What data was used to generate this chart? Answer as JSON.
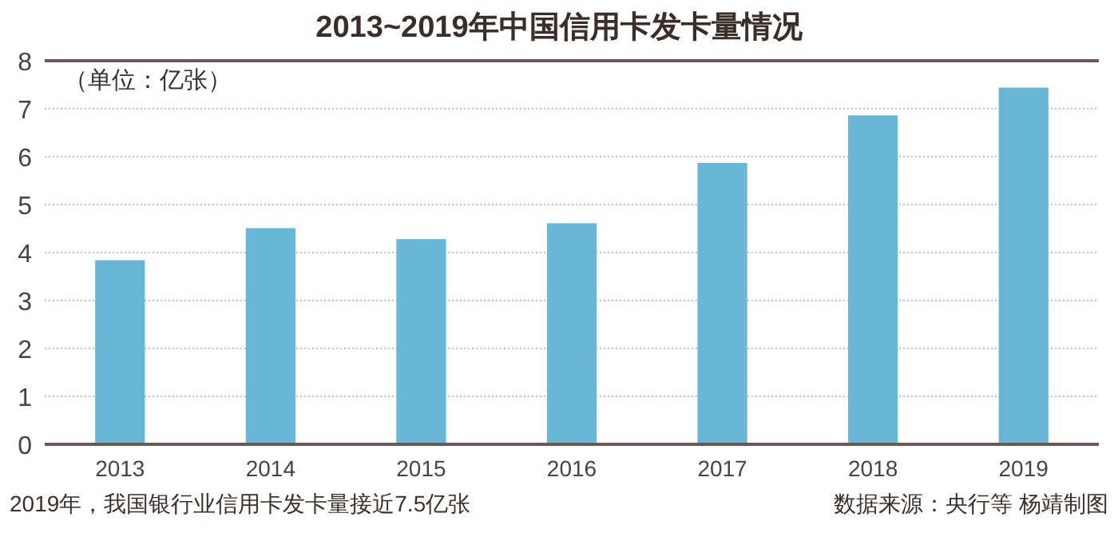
{
  "chart_data": {
    "type": "bar",
    "title": "2013~2019年中国信用卡发卡量情况",
    "categories": [
      "2013",
      "2014",
      "2015",
      "2016",
      "2017",
      "2018",
      "2019"
    ],
    "values": [
      3.84,
      4.51,
      4.28,
      4.61,
      5.87,
      6.86,
      7.44
    ],
    "color": "#67b8d6",
    "ylim": [
      0,
      8
    ],
    "yticks": [
      0,
      1,
      2,
      3,
      4,
      5,
      6,
      7,
      8
    ],
    "grid": "y",
    "annotations": [
      "（单位：亿张）",
      "2019年，我国银行业信用卡发卡量接近7.5亿张",
      "数据来源：央行等  杨靖制图"
    ]
  }
}
